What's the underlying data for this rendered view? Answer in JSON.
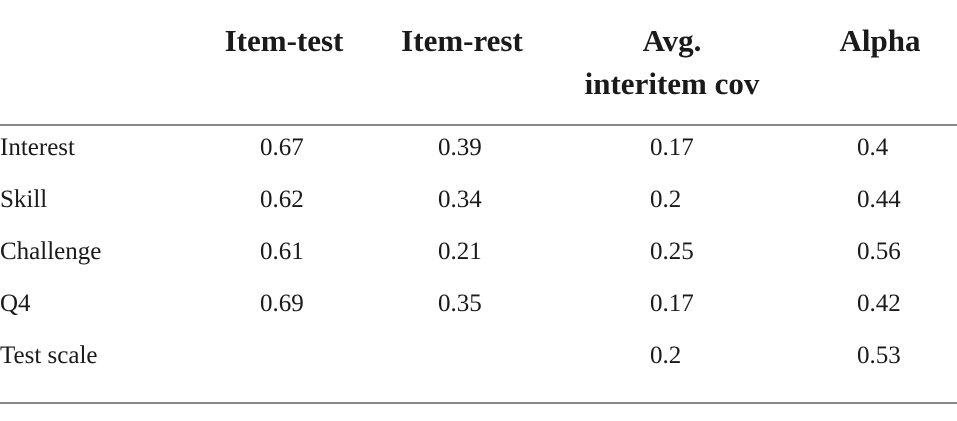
{
  "table": {
    "header": [
      "Item-test",
      "Item-rest",
      [
        "Avg.",
        "interitem cov"
      ],
      "Alpha"
    ],
    "rows": [
      [
        "Interest",
        "0.67",
        "0.39",
        "0.17",
        "0.4"
      ],
      [
        "Skill",
        "0.62",
        "0.34",
        "0.2",
        "0.44"
      ],
      [
        "Challenge",
        "0.61",
        "0.21",
        "0.25",
        "0.56"
      ],
      [
        "Q4",
        "0.69",
        "0.35",
        "0.17",
        "0.42"
      ],
      [
        "Test scale",
        null,
        null,
        "0.2",
        "0.53"
      ]
    ]
  }
}
